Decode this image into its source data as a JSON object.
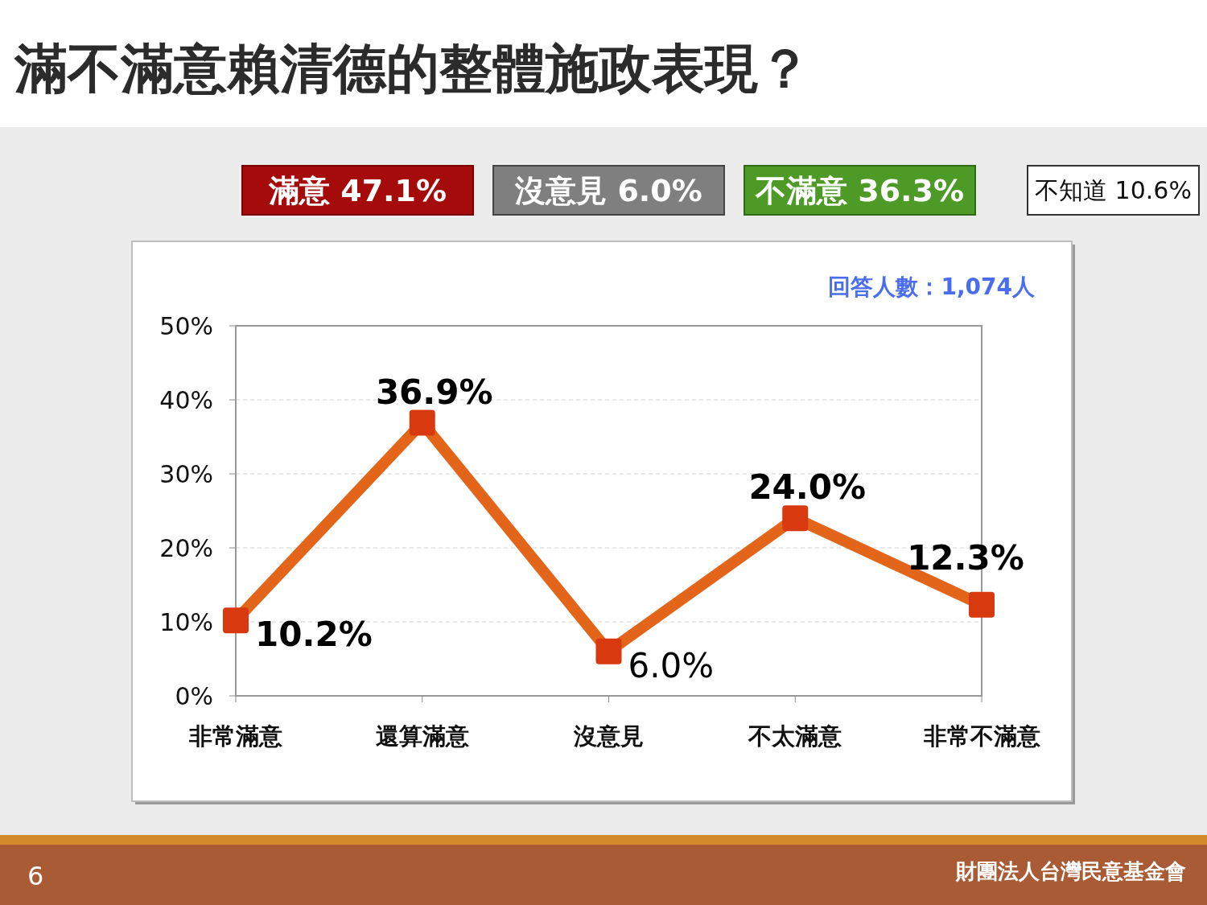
{
  "chart_data": {
    "type": "line",
    "title": "滿不滿意賴清德的整體施政表現？",
    "categories": [
      "非常滿意",
      "還算滿意",
      "沒意見",
      "不太滿意",
      "非常不滿意"
    ],
    "series": [
      {
        "color": "#e2651a",
        "values": [
          10.2,
          36.9,
          6.0,
          24.0,
          12.3
        ],
        "value_labels": [
          "10.2%",
          "36.9%",
          "6.0%",
          "24.0%",
          "12.3%"
        ]
      }
    ],
    "ylim": [
      0,
      50
    ],
    "yticks": [
      {
        "value": 0,
        "label": "0%"
      },
      {
        "value": 10,
        "label": "10%"
      },
      {
        "value": 20,
        "label": "20%"
      },
      {
        "value": 30,
        "label": "30%"
      },
      {
        "value": 40,
        "label": "40%"
      },
      {
        "value": 50,
        "label": "50%"
      }
    ],
    "grid": "y",
    "marker": "square",
    "annotations": [
      "滿意 47.1%",
      "沒意見 6.0%",
      "不滿意 36.3%",
      "不知道 10.6%",
      "回答人數：1,074人",
      "6",
      "財團法人台灣民意基金會"
    ]
  }
}
